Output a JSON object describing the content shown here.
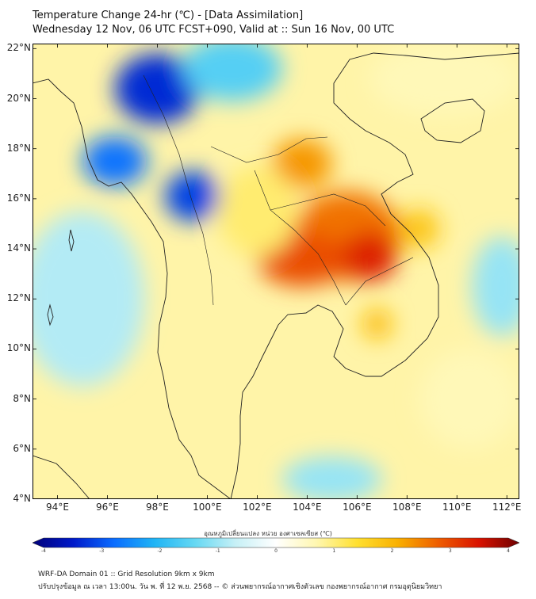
{
  "title": {
    "line1": "Temperature Change 24-hr (℃) - [Data Assimilation]",
    "line2": "Wednesday 12 Nov, 06 UTC FCST+090, Valid at :: Sun 16 Nov, 00 UTC"
  },
  "map": {
    "lat_range": [
      4,
      22.2
    ],
    "lon_range": [
      93,
      112.5
    ],
    "lat_ticks": [
      {
        "value": 22,
        "label": "22°N"
      },
      {
        "value": 20,
        "label": "20°N"
      },
      {
        "value": 18,
        "label": "18°N"
      },
      {
        "value": 16,
        "label": "16°N"
      },
      {
        "value": 14,
        "label": "14°N"
      },
      {
        "value": 12,
        "label": "12°N"
      },
      {
        "value": 10,
        "label": "10°N"
      },
      {
        "value": 8,
        "label": "8°N"
      },
      {
        "value": 6,
        "label": "6°N"
      },
      {
        "value": 4,
        "label": "4°N"
      }
    ],
    "lon_ticks": [
      {
        "value": 94,
        "label": "94°E"
      },
      {
        "value": 96,
        "label": "96°E"
      },
      {
        "value": 98,
        "label": "98°E"
      },
      {
        "value": 100,
        "label": "100°E"
      },
      {
        "value": 102,
        "label": "102°E"
      },
      {
        "value": 104,
        "label": "104°E"
      },
      {
        "value": 106,
        "label": "106°E"
      },
      {
        "value": 108,
        "label": "108°E"
      },
      {
        "value": 110,
        "label": "110°E"
      },
      {
        "value": 112,
        "label": "112°E"
      }
    ],
    "blobs": [
      {
        "lon": 98.0,
        "lat": 20.4,
        "rx": 1.7,
        "ry": 1.4,
        "value": -3.2
      },
      {
        "lon": 96.3,
        "lat": 17.5,
        "rx": 1.3,
        "ry": 1.0,
        "value": -2.6
      },
      {
        "lon": 99.4,
        "lat": 16.1,
        "rx": 1.1,
        "ry": 1.0,
        "value": -3.0
      },
      {
        "lon": 101.0,
        "lat": 21.2,
        "rx": 2.0,
        "ry": 1.3,
        "value": -1.5
      },
      {
        "lon": 95.0,
        "lat": 12.0,
        "rx": 2.5,
        "ry": 3.5,
        "value": -0.8
      },
      {
        "lon": 111.8,
        "lat": 12.5,
        "rx": 1.2,
        "ry": 2.0,
        "value": -1.0
      },
      {
        "lon": 105.0,
        "lat": 4.8,
        "rx": 2.0,
        "ry": 0.9,
        "value": -1.0
      },
      {
        "lon": 103.8,
        "lat": 17.4,
        "rx": 1.2,
        "ry": 1.0,
        "value": 2.2
      },
      {
        "lon": 105.6,
        "lat": 14.5,
        "rx": 2.2,
        "ry": 1.8,
        "value": 2.5
      },
      {
        "lon": 103.8,
        "lat": 13.6,
        "rx": 1.8,
        "ry": 1.1,
        "value": 2.8
      },
      {
        "lon": 106.5,
        "lat": 13.7,
        "rx": 1.1,
        "ry": 1.0,
        "value": 3.2
      },
      {
        "lon": 108.5,
        "lat": 14.8,
        "rx": 0.8,
        "ry": 0.8,
        "value": 1.7
      },
      {
        "lon": 106.8,
        "lat": 11.0,
        "rx": 0.6,
        "ry": 0.6,
        "value": 1.8
      },
      {
        "lon": 102.0,
        "lat": 15.5,
        "rx": 1.6,
        "ry": 1.8,
        "value": 1.0
      },
      {
        "lon": 109.5,
        "lat": 20.8,
        "rx": 3.0,
        "ry": 1.5,
        "value": 0.6
      },
      {
        "lon": 110.5,
        "lat": 8.0,
        "rx": 2.0,
        "ry": 2.0,
        "value": 0.6
      }
    ]
  },
  "colorbar": {
    "title": "อุณหภูมิเปลี่ยนแปลง หน่วย องศาเซลเซียส (℃)",
    "min": -4,
    "max": 4,
    "ticks": [
      {
        "value": -4,
        "label": "-4"
      },
      {
        "value": -3,
        "label": "-3"
      },
      {
        "value": -2,
        "label": "-2"
      },
      {
        "value": -1,
        "label": "-1"
      },
      {
        "value": 0,
        "label": "0"
      },
      {
        "value": 1,
        "label": "1"
      },
      {
        "value": 2,
        "label": "2"
      },
      {
        "value": 3,
        "label": "3"
      },
      {
        "value": 4,
        "label": "4"
      }
    ],
    "stops": [
      "#00007a",
      "#0019c9",
      "#0a6cff",
      "#1fb4f5",
      "#65d8f3",
      "#c6f0f6",
      "#ffffff",
      "#fff7b0",
      "#ffe030",
      "#f9b000",
      "#ee5d00",
      "#d91200",
      "#6d0000"
    ]
  },
  "footer": {
    "line1": "WRF-DA Domain 01 :: Grid Resolution 9km x 9km",
    "line2": "ปรับปรุงข้อมูล ณ เวลา 13:00น. วัน พ. ที่ 12 พ.ย. 2568 -- © ส่วนพยากรณ์อากาศเชิงตัวเลข กองพยากรณ์อากาศ กรมอุตุนิยมวิทยา"
  }
}
